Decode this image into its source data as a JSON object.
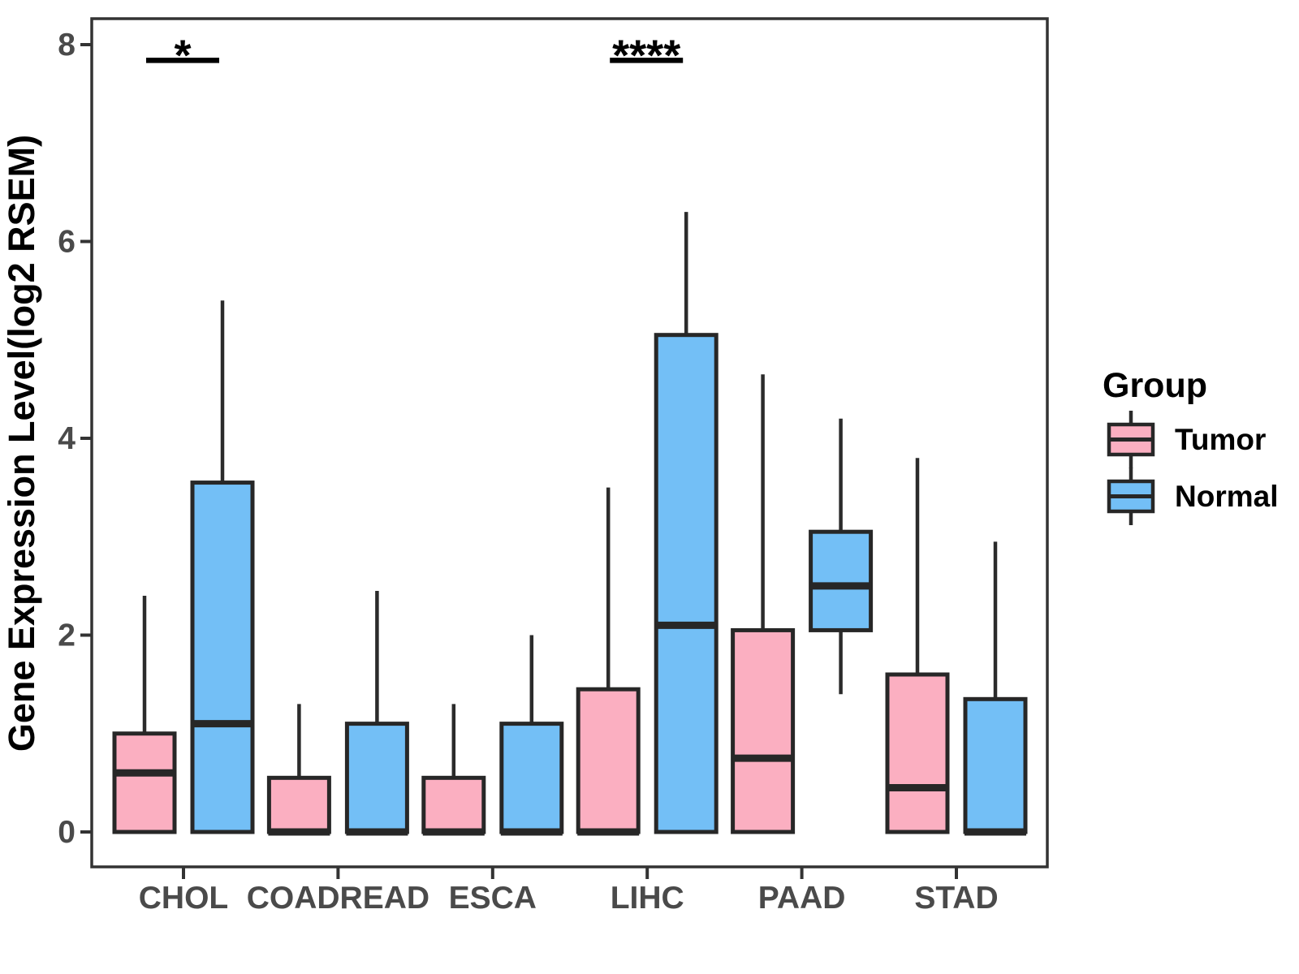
{
  "figure": {
    "background": "#ffffff"
  },
  "chart_data": {
    "type": "grouped_boxplot",
    "title": "",
    "xlabel": "",
    "ylabel": "Gene Expression Level(log2 RSEM)",
    "ylim": [
      0,
      8
    ],
    "yticks": [
      "0",
      "2",
      "4",
      "6",
      "8"
    ],
    "grid": false,
    "categories": [
      "CHOL",
      "COADREAD",
      "ESCA",
      "LIHC",
      "PAAD",
      "STAD"
    ],
    "series": [
      {
        "name": "Tumor",
        "color": "#FBAFC1",
        "boxes": [
          {
            "category": "CHOL",
            "whisker_low": 0,
            "q1": 0,
            "median": 0.6,
            "q3": 1.0,
            "whisker_high": 2.4
          },
          {
            "category": "COADREAD",
            "whisker_low": 0,
            "q1": 0,
            "median": 0,
            "q3": 0.55,
            "whisker_high": 1.3
          },
          {
            "category": "ESCA",
            "whisker_low": 0,
            "q1": 0,
            "median": 0,
            "q3": 0.55,
            "whisker_high": 1.3
          },
          {
            "category": "LIHC",
            "whisker_low": 0,
            "q1": 0,
            "median": 0,
            "q3": 1.45,
            "whisker_high": 3.5
          },
          {
            "category": "PAAD",
            "whisker_low": 0,
            "q1": 0,
            "median": 0.75,
            "q3": 2.05,
            "whisker_high": 4.65
          },
          {
            "category": "STAD",
            "whisker_low": 0,
            "q1": 0,
            "median": 0.45,
            "q3": 1.6,
            "whisker_high": 3.8
          }
        ]
      },
      {
        "name": "Normal",
        "color": "#73BFF6",
        "boxes": [
          {
            "category": "CHOL",
            "whisker_low": 0,
            "q1": 0,
            "median": 1.1,
            "q3": 3.55,
            "whisker_high": 5.4
          },
          {
            "category": "COADREAD",
            "whisker_low": 0,
            "q1": 0,
            "median": 0,
            "q3": 1.1,
            "whisker_high": 2.45
          },
          {
            "category": "ESCA",
            "whisker_low": 0,
            "q1": 0,
            "median": 0,
            "q3": 1.1,
            "whisker_high": 2.0
          },
          {
            "category": "LIHC",
            "whisker_low": 0,
            "q1": 0,
            "median": 2.1,
            "q3": 5.05,
            "whisker_high": 6.3
          },
          {
            "category": "PAAD",
            "whisker_low": 1.4,
            "q1": 2.05,
            "median": 2.5,
            "q3": 3.05,
            "whisker_high": 4.2
          },
          {
            "category": "STAD",
            "whisker_low": 0,
            "q1": 0,
            "median": 0,
            "q3": 1.35,
            "whisker_high": 2.95
          }
        ]
      }
    ],
    "annotations": [
      {
        "category": "CHOL",
        "label": "*",
        "bar_y": 7.84
      },
      {
        "category": "LIHC",
        "label": "****",
        "bar_y": 7.84
      }
    ],
    "legend": {
      "title": "Group",
      "position": "right",
      "entries": [
        {
          "label": "Tumor",
          "color": "#FBAFC1"
        },
        {
          "label": "Normal",
          "color": "#73BFF6"
        }
      ]
    }
  },
  "style_colors": {
    "box_border": "#272727",
    "median_line": "#272727",
    "whisker_line": "#2b2b2b",
    "panel_border": "#333333",
    "tick_mark": "#333333",
    "tick_label": "#4a4a4a",
    "axis_title": "#000000",
    "annotation": "#000000",
    "legend_text": "#000000"
  }
}
